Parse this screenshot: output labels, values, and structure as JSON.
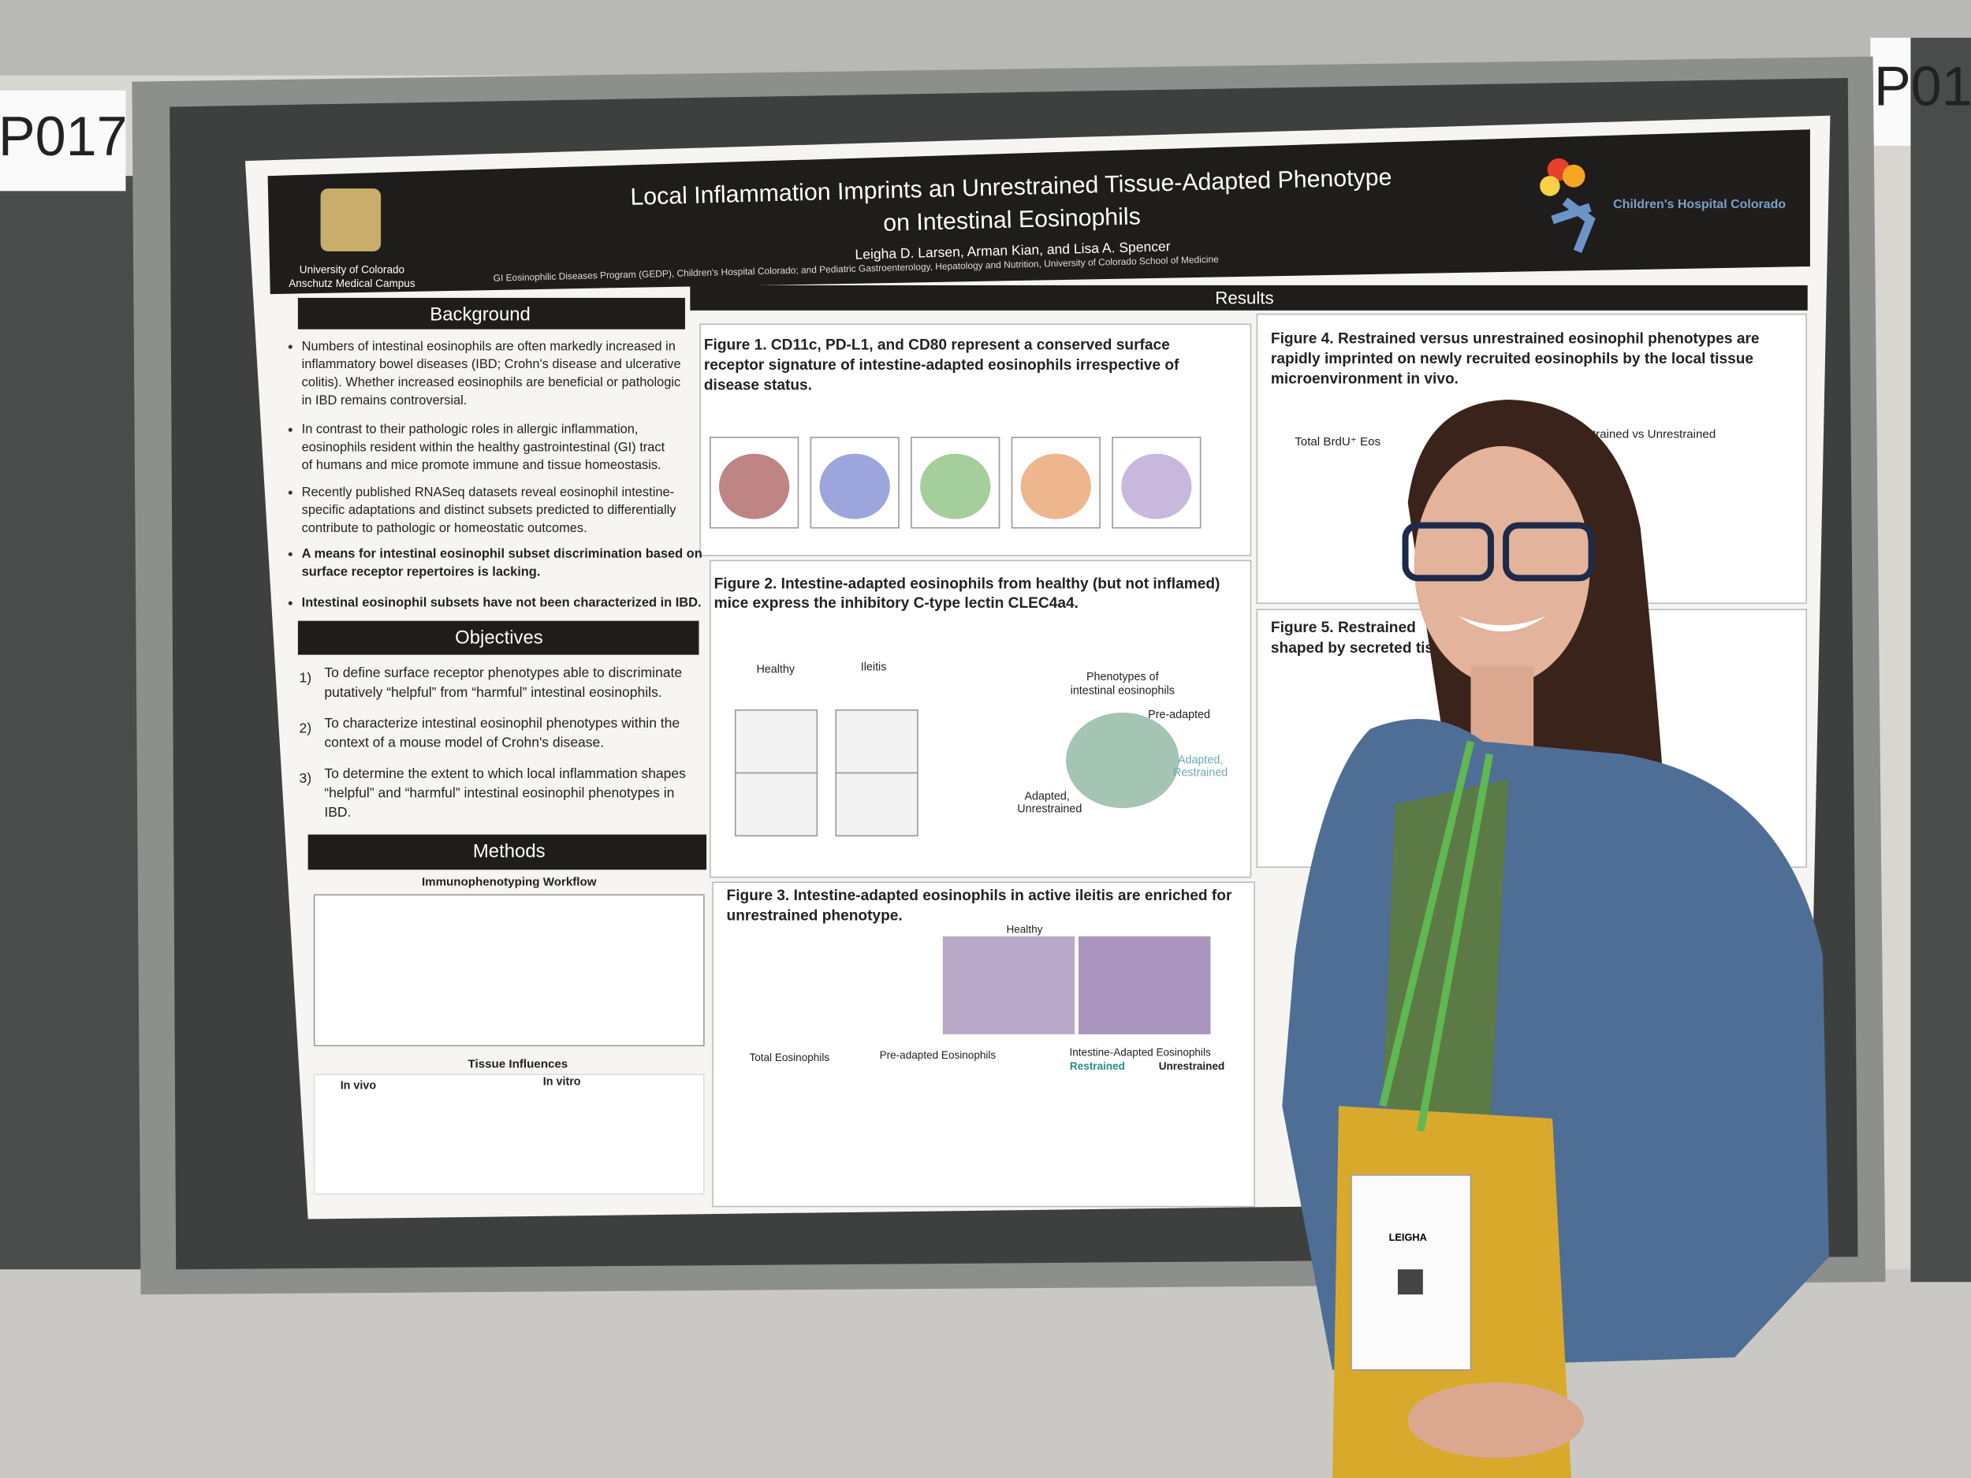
{
  "board_labels": [
    "P017",
    "P01"
  ],
  "header": {
    "title": [
      "Local Inflammation Imprints an Unrestrained Tissue-Adapted Phenotype",
      "on Intestinal Eosinophils"
    ],
    "authors": "Leigha D. Larsen, Arman Kian, and Lisa A. Spencer",
    "affiliation": "GI Eosinophilic Diseases Program (GEDP), Children's Hospital Colorado; and Pediatric Gastroenterology, Hepatology and Nutrition, University of Colorado School of Medicine",
    "left_logo": [
      "University of Colorado",
      "Anschutz Medical Campus"
    ],
    "right_logo": "Children's Hospital Colorado"
  },
  "background": {
    "heading": "Background",
    "bullets": [
      [
        "Numbers of intestinal eosinophils are often markedly increased in",
        "inflammatory bowel diseases (IBD; Crohn's disease and ulcerative",
        "colitis). Whether increased eosinophils are beneficial or pathologic",
        "in IBD remains controversial."
      ],
      [
        "In contrast to their pathologic roles in allergic inflammation,",
        "eosinophils resident within the healthy gastrointestinal (GI) tract",
        "of humans and mice promote immune and tissue homeostasis."
      ],
      [
        "Recently published RNASeq datasets reveal eosinophil intestine-",
        "specific adaptations and distinct subsets predicted to differentially",
        "contribute to pathologic or homeostatic outcomes."
      ],
      [
        "A means for intestinal eosinophil subset discrimination based on",
        "surface receptor repertoires is lacking."
      ],
      [
        "Intestinal eosinophil subsets have not been characterized in IBD."
      ]
    ]
  },
  "objectives": {
    "heading": "Objectives",
    "items": [
      {
        "number": "1)",
        "lines": [
          "To define surface receptor phenotypes able to discriminate",
          "putatively “helpful” from “harmful” intestinal eosinophils."
        ]
      },
      {
        "number": "2)",
        "lines": [
          "To characterize intestinal eosinophil phenotypes within the",
          "context of a mouse model of Crohn's disease."
        ]
      },
      {
        "number": "3)",
        "lines": [
          "To determine the extent to which local inflammation shapes",
          "“helpful” and “harmful” intestinal eosinophil phenotypes in",
          "IBD."
        ]
      }
    ]
  },
  "methods": {
    "heading": "Methods",
    "workflow": "Immunophenotyping Workflow",
    "influences": "Tissue Influences",
    "in_vivo": "In vivo",
    "in_vitro": "In vitro"
  },
  "results": {
    "heading": "Results",
    "figures": [
      [
        "Figure 1. CD11c, PD-L1, and CD80 represent a conserved surface",
        "receptor signature of intestine-adapted eosinophils irrespective of",
        "disease status."
      ],
      [
        "Figure 2. Intestine-adapted eosinophils from healthy (but not inflamed)",
        "mice express the inhibitory C-type lectin CLEC4a4."
      ],
      [
        "Figure 3. Intestine-adapted eosinophils in active ileitis are enriched for",
        "unrestrained phenotype."
      ],
      [
        "Figure 4. Restrained versus unrestrained eosinophil phenotypes are",
        "rapidly imprinted on newly recruited eosinophils by the local tissue",
        "microenvironment in vivo."
      ],
      [
        "Figure 5. Restrained",
        "shaped by secreted tis"
      ]
    ],
    "fig2_panels": [
      "Healthy",
      "Ileitis",
      "Phenotypes of",
      "intestinal eosinophils",
      "Pre-adapted",
      "Adapted,",
      "Restrained",
      "Adapted,",
      "Unrestrained"
    ],
    "fig3_panels": [
      "Healthy",
      "Total Eosinophils",
      "Pre-adapted Eosinophils",
      "Intestine-Adapted Eosinophils",
      "Restrained",
      "Unrestrained"
    ],
    "fig4_panels": [
      "Total BrdU⁺ Eos",
      "Restrained vs Unrestrained"
    ]
  },
  "badge": "LEIGHA"
}
